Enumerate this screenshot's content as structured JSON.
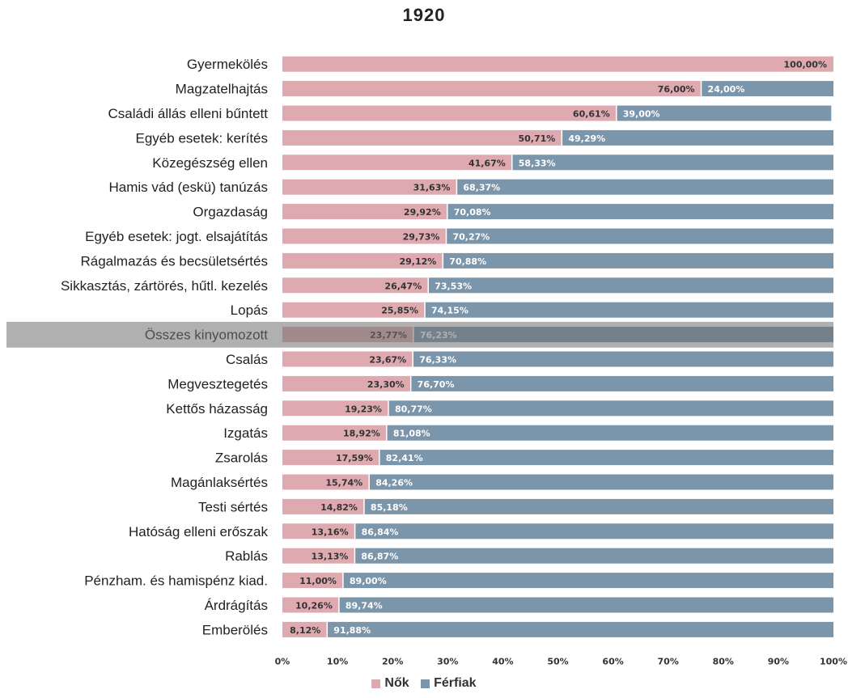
{
  "chart_data": {
    "type": "bar",
    "orientation": "horizontal",
    "stacked": "percent",
    "title": "1920",
    "categories": [
      "Gyermekölés",
      "Magzatelhajtás",
      "Családi állás elleni bűntett",
      "Egyéb esetek: kerítés",
      "Közegészség ellen",
      "Hamis vád (eskü) tanúzás",
      "Orgazdaság",
      "Egyéb esetek: jogt. elsajátítás",
      "Rágalmazás és becsületsértés",
      "Sikkasztás, zártörés, hűtl. kezelés",
      "Lopás",
      "Összes kinyomozott",
      "Csalás",
      "Megvesztegetés",
      "Kettős házasság",
      "Izgatás",
      "Zsarolás",
      "Magánlaksértés",
      "Testi sértés",
      "Hatóság elleni erőszak",
      "Rablás",
      "Pénzham. és hamispénz kiad.",
      "Árdrágítás",
      "Emberölés"
    ],
    "series": [
      {
        "name": "Nők",
        "color": "#deaaaf",
        "values": [
          100.0,
          76.0,
          60.61,
          50.71,
          41.67,
          31.63,
          29.92,
          29.73,
          29.12,
          26.47,
          25.85,
          23.77,
          23.67,
          23.3,
          19.23,
          18.92,
          17.59,
          15.74,
          14.82,
          13.16,
          13.13,
          11.0,
          10.26,
          8.12
        ],
        "labels": [
          "100,00%",
          "76,00%",
          "60,61%",
          "50,71%",
          "41,67%",
          "31,63%",
          "29,92%",
          "29,73%",
          "29,12%",
          "26,47%",
          "25,85%",
          "23,77%",
          "23,67%",
          "23,30%",
          "19,23%",
          "18,92%",
          "17,59%",
          "15,74%",
          "14,82%",
          "13,16%",
          "13,13%",
          "11,00%",
          "10,26%",
          "8,12%"
        ]
      },
      {
        "name": "Férfiak",
        "color": "#7b95ab",
        "values": [
          0,
          24.0,
          39.0,
          49.29,
          58.33,
          68.37,
          70.08,
          70.27,
          70.88,
          73.53,
          74.15,
          76.23,
          76.33,
          76.7,
          80.77,
          81.08,
          82.41,
          84.26,
          85.18,
          86.84,
          86.87,
          89.0,
          89.74,
          91.88
        ],
        "labels": [
          "",
          "24,00%",
          "39,00%",
          "49,29%",
          "58,33%",
          "68,37%",
          "70,08%",
          "70,27%",
          "70,88%",
          "73,53%",
          "74,15%",
          "76,23%",
          "76,33%",
          "76,70%",
          "80,77%",
          "81,08%",
          "82,41%",
          "84,26%",
          "85,18%",
          "86,84%",
          "86,87%",
          "89,00%",
          "89,74%",
          "91,88%"
        ]
      }
    ],
    "xticks": [
      "0%",
      "10%",
      "20%",
      "30%",
      "40%",
      "50%",
      "60%",
      "70%",
      "80%",
      "90%",
      "100%"
    ],
    "xlim": [
      0,
      100
    ],
    "highlighted_category": "Összes kinyomozott",
    "highlight_color": "#6f6f6f",
    "legend": {
      "placement": "bottom-center",
      "entries": [
        "Nők",
        "Férfiak"
      ]
    },
    "grid": false,
    "xlabel": "",
    "ylabel": ""
  }
}
